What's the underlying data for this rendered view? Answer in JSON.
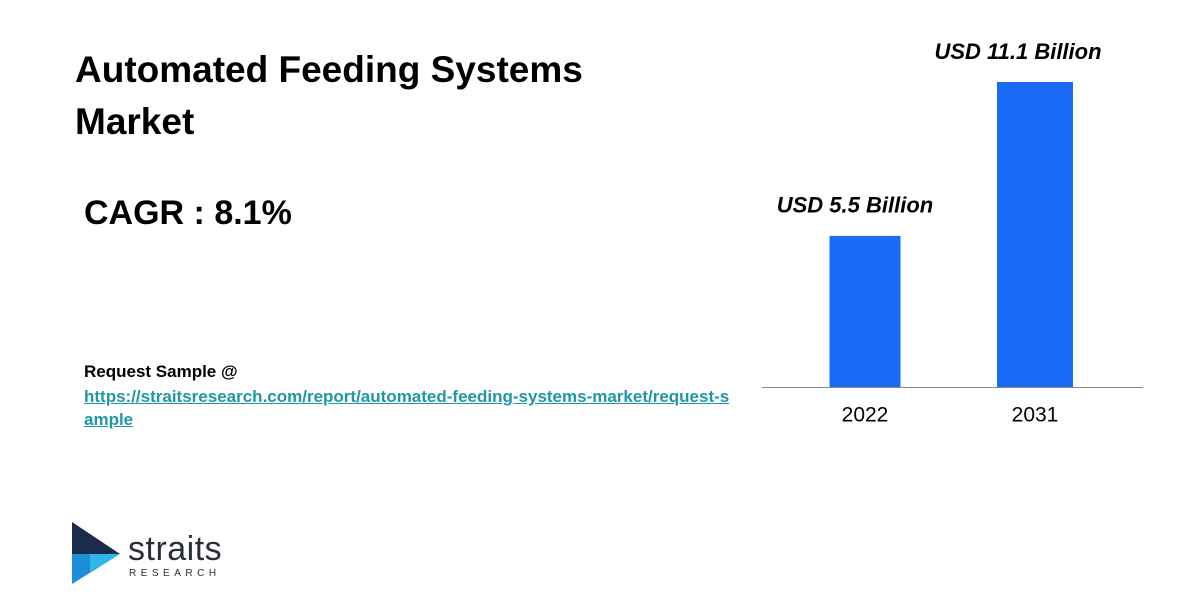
{
  "chart_data": {
    "type": "bar",
    "title": "Automated Feeding Systems Market",
    "categories": [
      "2022",
      "2031"
    ],
    "values": [
      5.5,
      11.1
    ],
    "value_labels": [
      "USD 5.5 Billion",
      "USD 11.1 Billion"
    ],
    "color": "#1a6cf6"
  },
  "cagr": "CAGR : 8.1%",
  "request": {
    "label": "Request Sample @",
    "url": "https://straitsresearch.com/report/automated-feeding-systems-market/request-sample"
  },
  "logo": {
    "name": "straits",
    "tagline": "RESEARCH"
  }
}
